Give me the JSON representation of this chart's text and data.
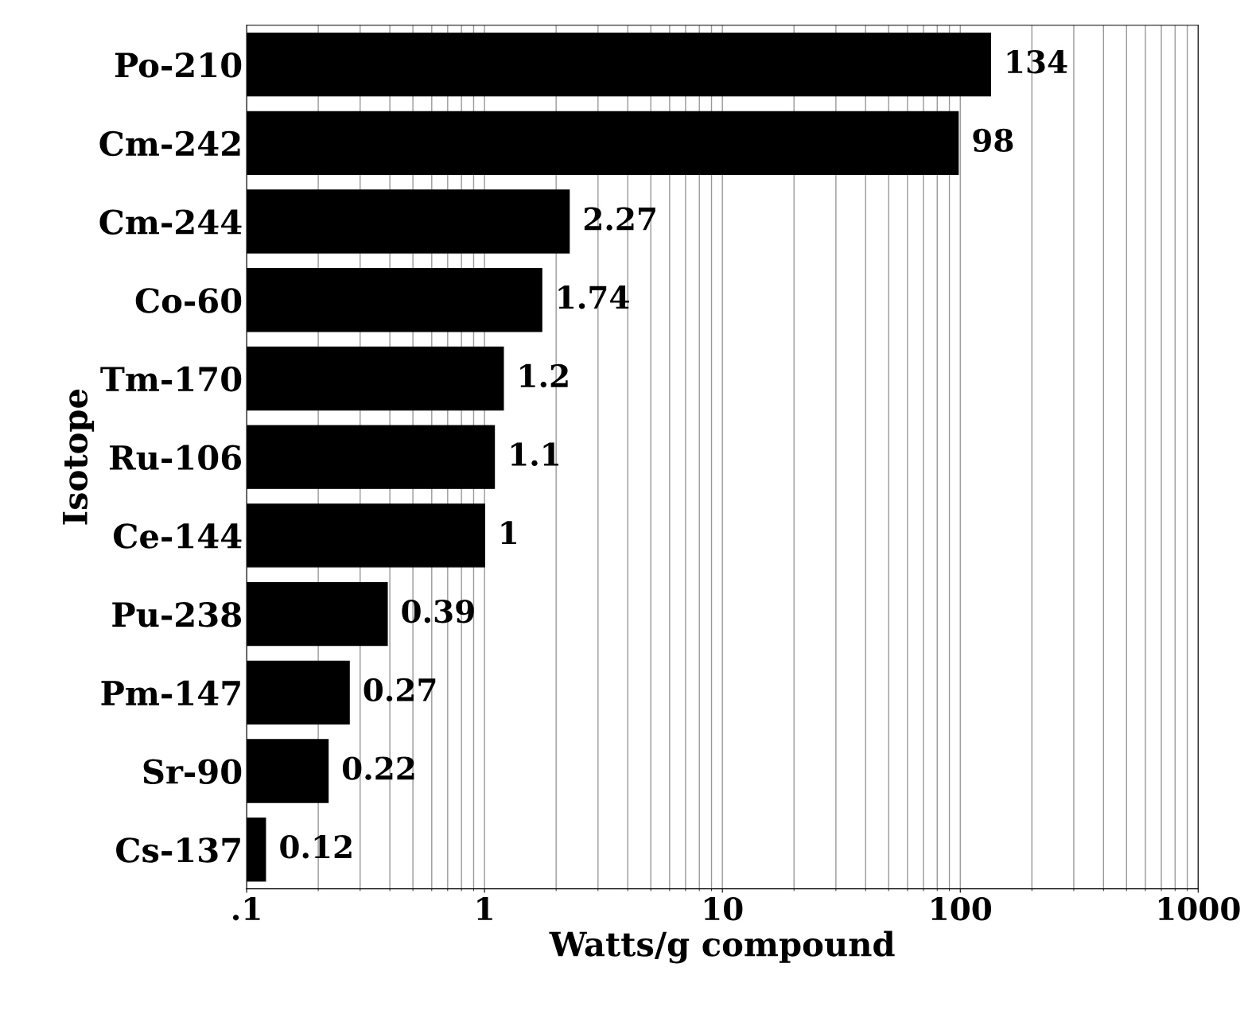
{
  "chart_data": {
    "type": "bar",
    "orientation": "horizontal",
    "xlabel": "Watts/g compound",
    "ylabel": "Isotope",
    "categories": [
      "Po-210",
      "Cm-242",
      "Cm-244",
      "Co-60",
      "Tm-170",
      "Ru-106",
      "Ce-144",
      "Pu-238",
      "Pm-147",
      "Sr-90",
      "Cs-137"
    ],
    "values": [
      134,
      98,
      2.27,
      1.74,
      1.2,
      1.1,
      1,
      0.39,
      0.27,
      0.22,
      0.12
    ],
    "color": "#000000",
    "log": "x",
    "xlim": [
      0.1,
      1000
    ],
    "xticks": [
      {
        "value": 0.1,
        "label": ".1"
      },
      1,
      10,
      100,
      1000
    ],
    "grid": "x",
    "data_labels": true,
    "legend": false
  }
}
